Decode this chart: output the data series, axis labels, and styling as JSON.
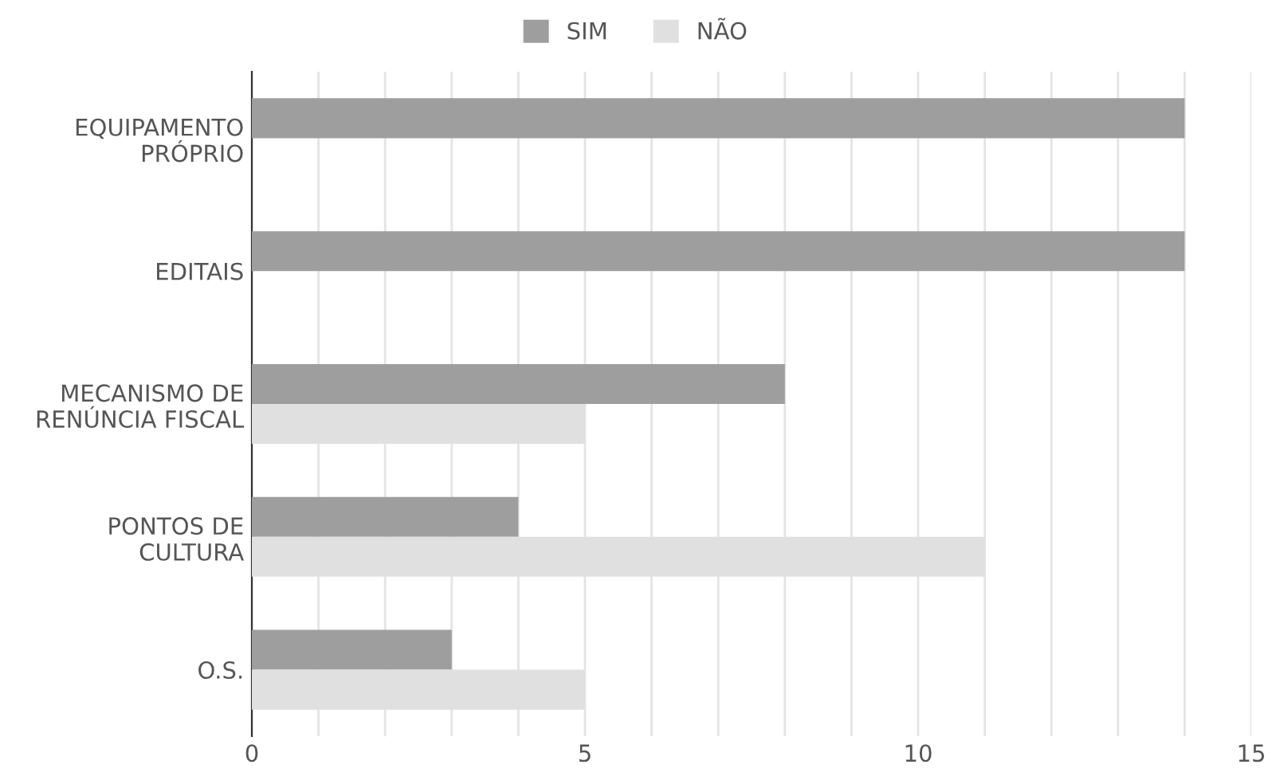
{
  "chart_data": {
    "type": "bar",
    "orientation": "horizontal",
    "categories": [
      "EQUIPAMENTO\nPRÓPRIO",
      "EDITAIS",
      "MECANISMO DE\nRENÚNCIA FISCAL",
      "PONTOS DE\nCULTURA",
      "O.S."
    ],
    "series": [
      {
        "name": "SIM",
        "color": "#9e9e9e",
        "values": [
          14,
          14,
          8,
          4,
          3
        ]
      },
      {
        "name": "NÃO",
        "color": "#e0e0e0",
        "values": [
          null,
          null,
          5,
          11,
          5
        ]
      }
    ],
    "xlim": [
      0,
      15
    ],
    "xticks": [
      0,
      {
        "value": 1,
        "label": null
      },
      {
        "value": 2,
        "label": null
      },
      {
        "value": 3,
        "label": null
      },
      {
        "value": 4,
        "label": null
      },
      5,
      {
        "value": 6,
        "label": null
      },
      {
        "value": 7,
        "label": null
      },
      {
        "value": 8,
        "label": null
      },
      {
        "value": 9,
        "label": null
      },
      10,
      {
        "value": 11,
        "label": null
      },
      {
        "value": 12,
        "label": null
      },
      {
        "value": 13,
        "label": null
      },
      {
        "value": 14,
        "label": null
      },
      15
    ],
    "grid": "x",
    "legend": "top"
  }
}
